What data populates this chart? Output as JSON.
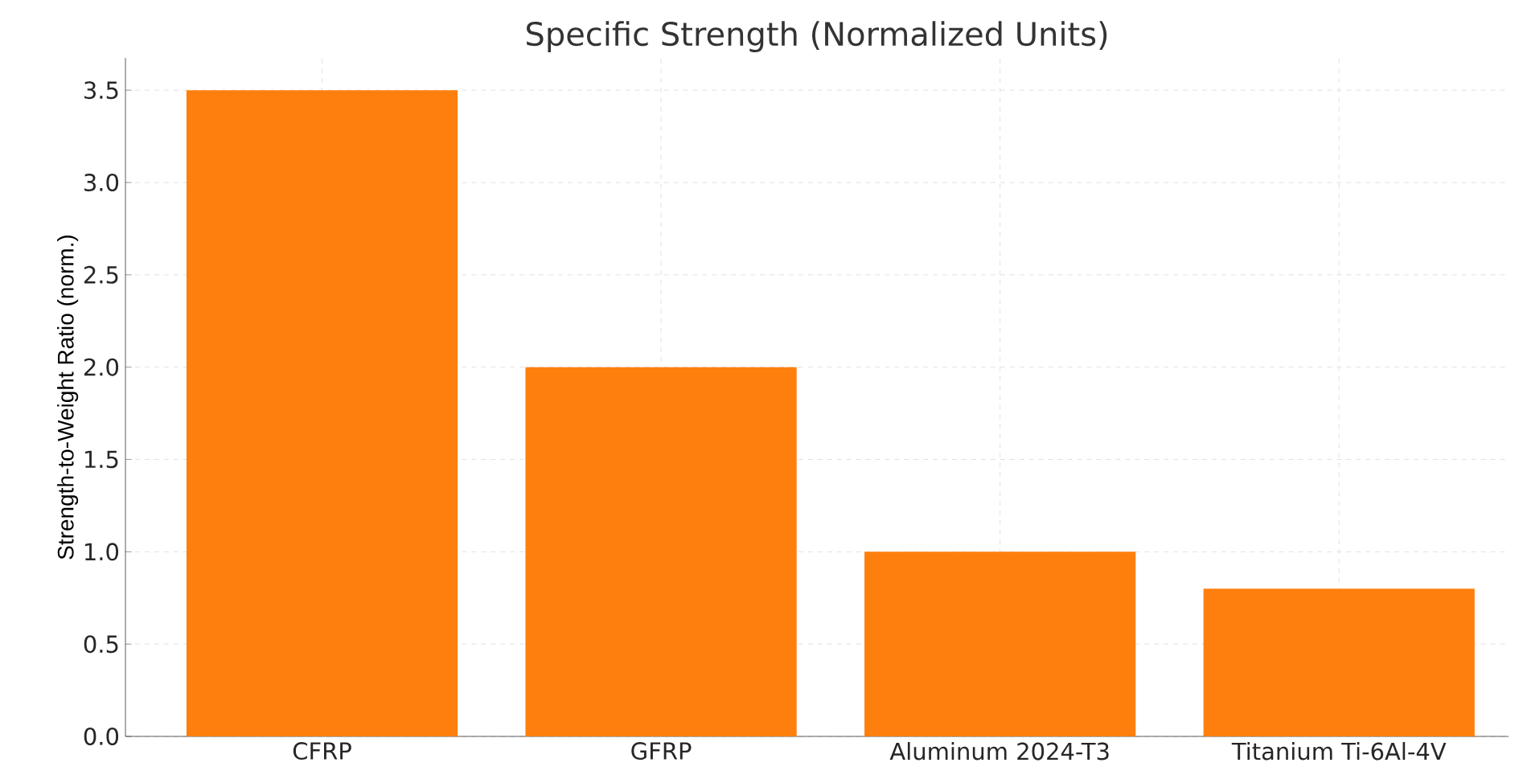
{
  "chart_data": {
    "type": "bar",
    "title": "Specific Strength (Normalized Units)",
    "ylabel": "Strength-to-Weight Ratio (norm.)",
    "categories": [
      "CFRP",
      "GFRP",
      "Aluminum 2024-T3",
      "Titanium Ti-6Al-4V"
    ],
    "values": [
      3.5,
      2.0,
      1.0,
      0.8
    ],
    "color": "#ff7f0e",
    "ylim": [
      0,
      3.675
    ],
    "yticks": [
      {
        "value": 0,
        "label": "0.0"
      },
      0.5,
      {
        "value": 1,
        "label": "1.0"
      },
      1.5,
      {
        "value": 2,
        "label": "2.0"
      },
      2.5,
      {
        "value": 3,
        "label": "3.0"
      },
      3.5
    ],
    "grid": true
  }
}
